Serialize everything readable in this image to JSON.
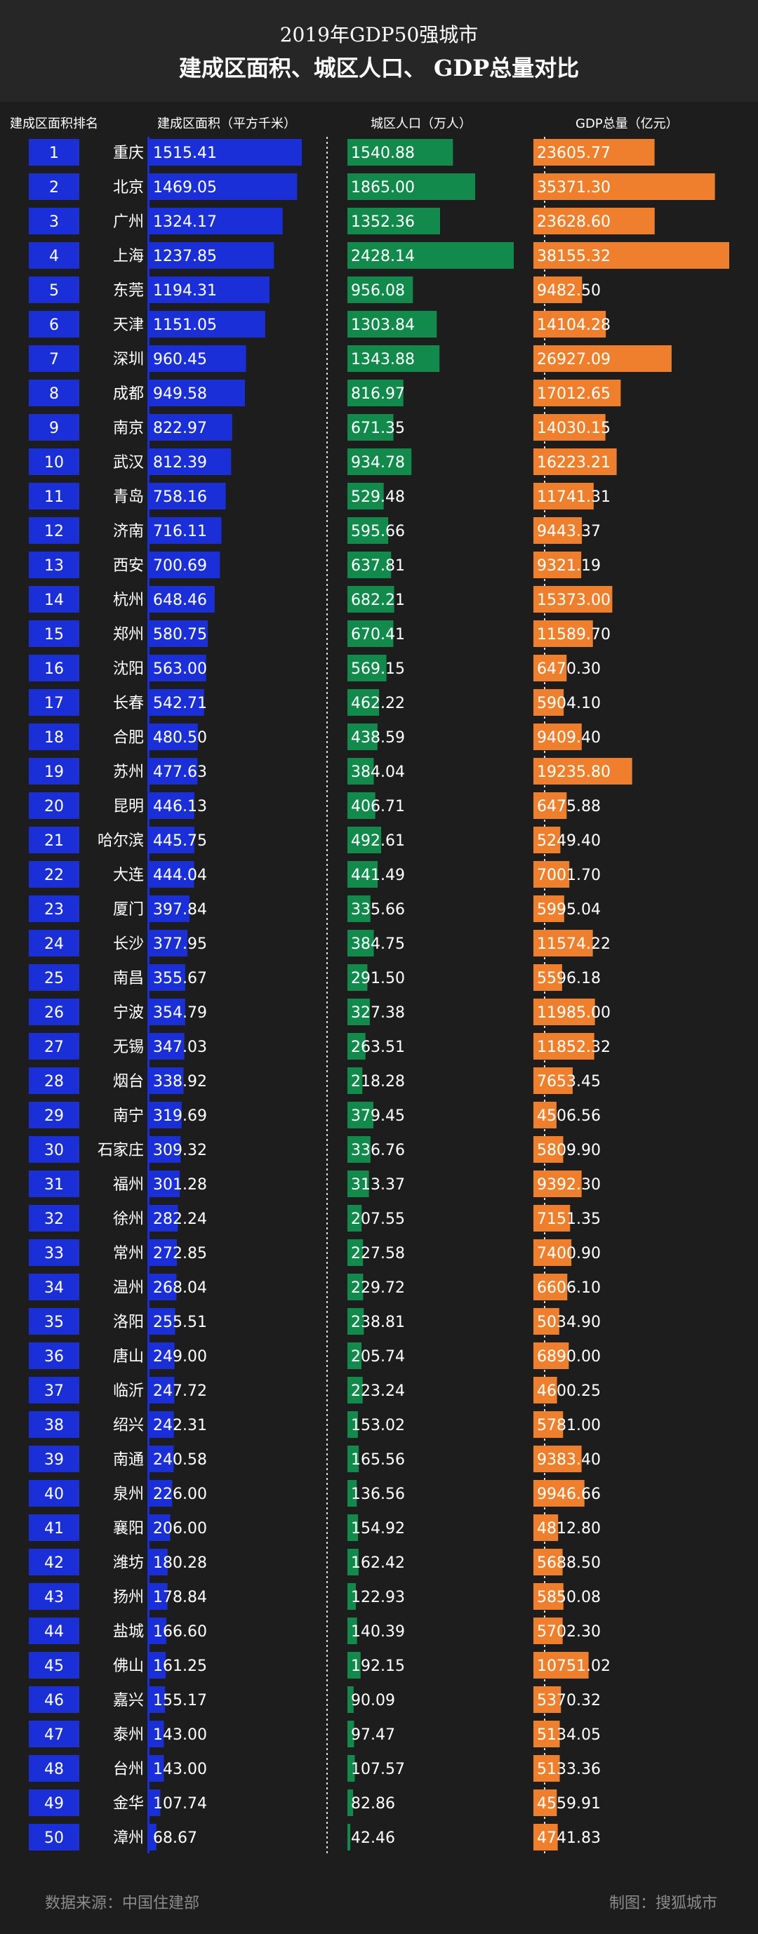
{
  "header": {
    "title_line1": "2019年GDP50强城市",
    "title_line2": "建成区面积、城区人口、 GDP总量对比"
  },
  "columns": {
    "rank": "建成区面积排名",
    "area": "建成区面积（平方千米）",
    "population": "城区人口（万人）",
    "gdp": "GDP总量（亿元）"
  },
  "footer": {
    "source": "数据来源：中国住建部",
    "credit": "制图：搜狐城市"
  },
  "colors": {
    "background": "#1d1d1d",
    "rank_box": "#1a2fd8",
    "area_bar": "#1a2fd8",
    "population_bar": "#128a4c",
    "gdp_bar": "#ef7f2c"
  },
  "chart_data": {
    "type": "bar",
    "categories": [
      "重庆",
      "北京",
      "广州",
      "上海",
      "东莞",
      "天津",
      "深圳",
      "成都",
      "南京",
      "武汉",
      "青岛",
      "济南",
      "西安",
      "杭州",
      "郑州",
      "沈阳",
      "长春",
      "合肥",
      "苏州",
      "昆明",
      "哈尔滨",
      "大连",
      "厦门",
      "长沙",
      "南昌",
      "宁波",
      "无锡",
      "烟台",
      "南宁",
      "石家庄",
      "福州",
      "徐州",
      "常州",
      "温州",
      "洛阳",
      "唐山",
      "临沂",
      "绍兴",
      "南通",
      "泉州",
      "襄阳",
      "潍坊",
      "扬州",
      "盐城",
      "佛山",
      "嘉兴",
      "泰州",
      "台州",
      "金华",
      "漳州"
    ],
    "ranks": [
      "1",
      "2",
      "3",
      "4",
      "5",
      "6",
      "7",
      "8",
      "9",
      "10",
      "11",
      "12",
      "13",
      "14",
      "15",
      "16",
      "17",
      "18",
      "19",
      "20",
      "21",
      "22",
      "23",
      "24",
      "25",
      "26",
      "27",
      "28",
      "29",
      "30",
      "31",
      "32",
      "33",
      "34",
      "35",
      "36",
      "37",
      "38",
      "39",
      "40",
      "41",
      "42",
      "43",
      "44",
      "45",
      "46",
      "47",
      "48",
      "49",
      "50"
    ],
    "series": [
      {
        "name": "建成区面积（平方千米）",
        "values": [
          1515.41,
          1469.05,
          1324.17,
          1237.85,
          1194.31,
          1151.05,
          960.45,
          949.58,
          822.97,
          812.39,
          758.16,
          716.11,
          700.69,
          648.46,
          580.75,
          563.0,
          542.71,
          480.5,
          477.63,
          446.13,
          445.75,
          444.04,
          397.84,
          377.95,
          355.67,
          354.79,
          347.03,
          338.92,
          319.69,
          309.32,
          301.28,
          282.24,
          272.85,
          268.04,
          255.51,
          249.0,
          247.72,
          242.31,
          240.58,
          226.0,
          206.0,
          180.28,
          178.84,
          166.6,
          161.25,
          155.17,
          143.0,
          143.0,
          107.74,
          68.67
        ]
      },
      {
        "name": "城区人口（万人）",
        "values": [
          1540.88,
          1865.0,
          1352.36,
          2428.14,
          956.08,
          1303.84,
          1343.88,
          816.97,
          671.35,
          934.78,
          529.48,
          595.66,
          637.81,
          682.21,
          670.41,
          569.15,
          462.22,
          438.59,
          384.04,
          406.71,
          492.61,
          441.49,
          335.66,
          384.75,
          291.5,
          327.38,
          263.51,
          218.28,
          379.45,
          336.76,
          313.37,
          207.55,
          227.58,
          229.72,
          238.81,
          205.74,
          223.24,
          153.02,
          165.56,
          136.56,
          154.92,
          162.42,
          122.93,
          140.39,
          192.15,
          90.09,
          97.47,
          107.57,
          82.86,
          42.46
        ]
      },
      {
        "name": "GDP总量（亿元）",
        "values": [
          23605.77,
          35371.3,
          23628.6,
          38155.32,
          9482.5,
          14104.28,
          26927.09,
          17012.65,
          14030.15,
          16223.21,
          11741.31,
          9443.37,
          9321.19,
          15373.0,
          11589.7,
          6470.3,
          5904.1,
          9409.4,
          19235.8,
          6475.88,
          5249.4,
          7001.7,
          5995.04,
          11574.22,
          5596.18,
          11985.0,
          11852.32,
          7653.45,
          4506.56,
          5809.9,
          9392.3,
          7151.35,
          7400.9,
          6606.1,
          5034.9,
          6890.0,
          4600.25,
          5781.0,
          9383.4,
          9946.66,
          4812.8,
          5688.5,
          5850.08,
          5702.3,
          10751.02,
          5370.32,
          5134.05,
          5133.36,
          4559.91,
          4741.83
        ]
      }
    ]
  }
}
